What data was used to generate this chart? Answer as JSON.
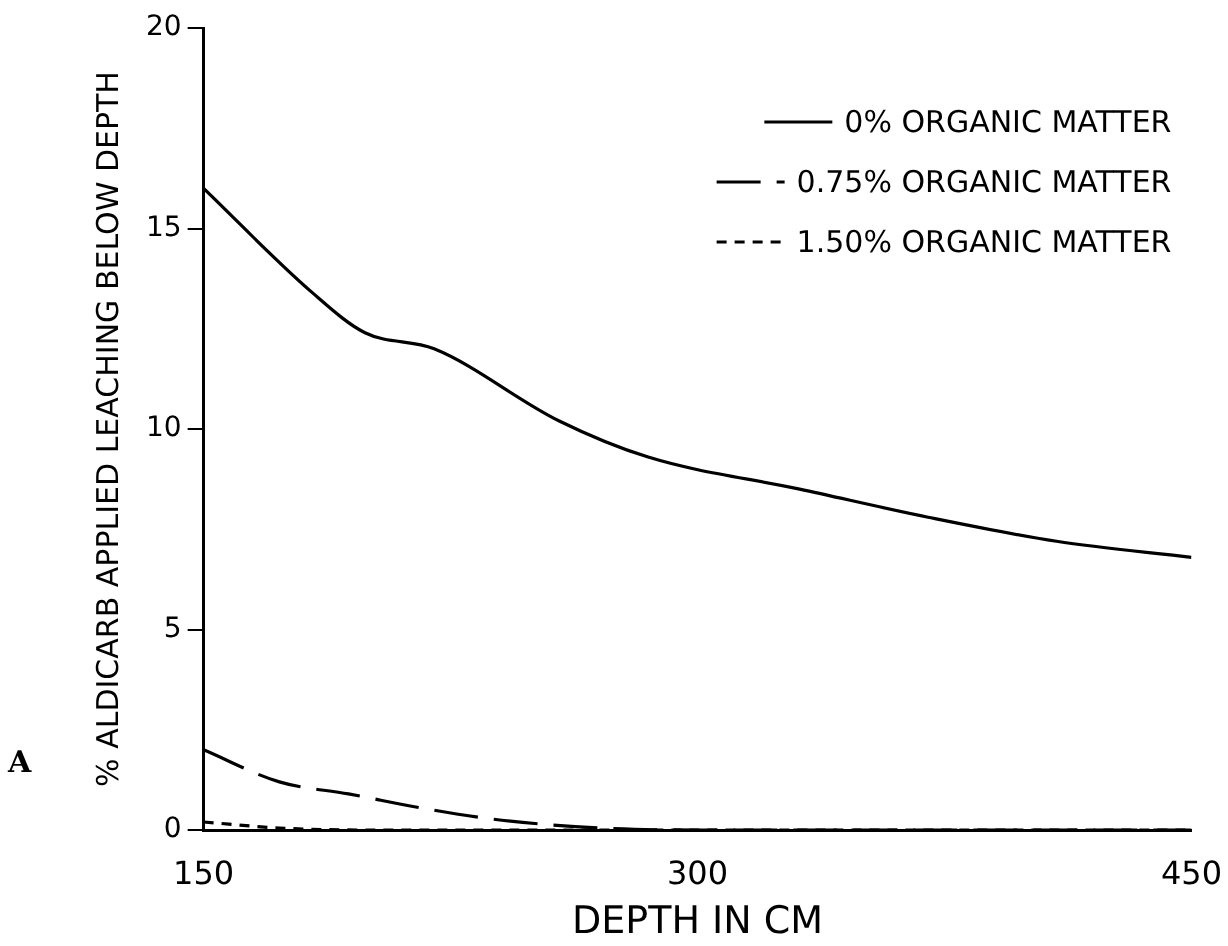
{
  "chart_data": {
    "type": "line",
    "xlabel": "DEPTH IN CM",
    "ylabel": "% ALDICARB APPLIED LEACHING BELOW DEPTH",
    "xlim": [
      150,
      450
    ],
    "xticks": [
      150,
      300,
      450
    ],
    "ylim": [
      0,
      20
    ],
    "yticks": [
      0,
      5,
      10,
      15,
      20
    ],
    "grid": false,
    "legend": "top right",
    "marker": "none",
    "annotations": [
      "A"
    ],
    "series": [
      {
        "name": "0% ORGANIC MATTER",
        "color": "#000000",
        "line_style": "solid",
        "x": [
          150,
          183,
          199,
          220,
          258,
          285,
          331,
          370,
          409,
          450
        ],
        "values": [
          16,
          13.4,
          12.4,
          12.0,
          10.2,
          9.3,
          8.5,
          7.8,
          7.2,
          6.8
        ]
      },
      {
        "name": "0.75% ORGANIC MATTER",
        "color": "#000000",
        "line_style": "dashed",
        "x": [
          150,
          173,
          194,
          216,
          238,
          270,
          300,
          450
        ],
        "values": [
          2.0,
          1.2,
          0.9,
          0.55,
          0.27,
          0.05,
          0,
          0
        ]
      },
      {
        "name": "1.50% ORGANIC MATTER",
        "color": "#000000",
        "line_style": "dotted",
        "x": [
          150,
          173,
          200,
          300,
          450
        ],
        "values": [
          0.2,
          0.05,
          0,
          0,
          0
        ]
      }
    ]
  }
}
